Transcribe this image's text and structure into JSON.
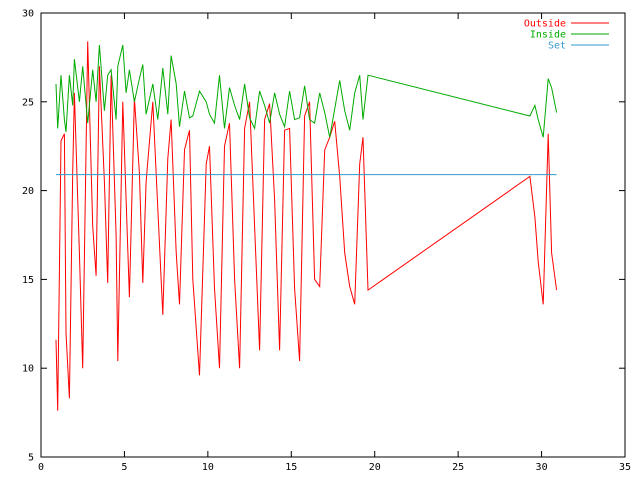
{
  "chart_data": {
    "type": "line",
    "title": "",
    "xlabel": "",
    "ylabel": "",
    "xlim": [
      0,
      35
    ],
    "ylim": [
      5,
      30
    ],
    "xticks": [
      0,
      5,
      10,
      15,
      20,
      25,
      30,
      35
    ],
    "yticks": [
      5,
      10,
      15,
      20,
      25,
      30
    ],
    "grid": false,
    "legend_position": "top-right",
    "series": [
      {
        "name": "Outside",
        "color": "#ff0000",
        "x": [
          0.9,
          1.0,
          1.2,
          1.4,
          1.5,
          1.7,
          1.9,
          2.0,
          2.3,
          2.5,
          2.8,
          3.1,
          3.3,
          3.5,
          3.8,
          4.0,
          4.2,
          4.5,
          4.6,
          4.9,
          5.1,
          5.3,
          5.6,
          5.9,
          6.1,
          6.3,
          6.7,
          7.0,
          7.3,
          7.6,
          7.8,
          8.1,
          8.3,
          8.6,
          8.9,
          9.1,
          9.5,
          9.9,
          10.1,
          10.4,
          10.7,
          11.0,
          11.3,
          11.6,
          11.9,
          12.2,
          12.5,
          12.8,
          13.1,
          13.4,
          13.7,
          14.0,
          14.3,
          14.6,
          14.9,
          15.2,
          15.5,
          15.8,
          16.1,
          16.4,
          16.7,
          17.0,
          17.3,
          17.6,
          17.9,
          18.2,
          18.5,
          18.8,
          19.1,
          19.3,
          19.6,
          29.3,
          29.6,
          29.8,
          30.1,
          30.4,
          30.6,
          30.9
        ],
        "values": [
          11.6,
          7.6,
          22.8,
          23.2,
          12.0,
          8.3,
          21.0,
          25.5,
          16.5,
          10.0,
          28.4,
          18.0,
          15.2,
          27.0,
          20.5,
          14.8,
          26.5,
          17.5,
          10.4,
          25.0,
          19.5,
          14.0,
          25.2,
          21.0,
          14.8,
          20.5,
          25.0,
          19.0,
          13.0,
          21.8,
          24.0,
          16.5,
          13.6,
          22.3,
          23.4,
          15.0,
          9.6,
          21.5,
          22.5,
          14.5,
          10.0,
          22.5,
          23.8,
          15.0,
          10.0,
          23.5,
          25.0,
          18.0,
          11.0,
          24.0,
          24.9,
          19.5,
          11.0,
          23.4,
          23.5,
          14.5,
          10.4,
          24.2,
          25.0,
          15.0,
          14.6,
          22.3,
          23.0,
          23.9,
          20.8,
          16.5,
          14.6,
          13.6,
          21.5,
          23.0,
          14.4,
          20.8,
          18.5,
          16.0,
          13.6,
          23.2,
          16.5,
          14.4
        ]
      },
      {
        "name": "Inside",
        "color": "#00aa00",
        "x": [
          0.9,
          1.0,
          1.2,
          1.4,
          1.5,
          1.7,
          1.9,
          2.0,
          2.3,
          2.5,
          2.8,
          3.1,
          3.3,
          3.5,
          3.8,
          4.0,
          4.2,
          4.5,
          4.6,
          4.9,
          5.1,
          5.3,
          5.6,
          5.9,
          6.1,
          6.3,
          6.7,
          7.0,
          7.3,
          7.6,
          7.8,
          8.1,
          8.3,
          8.6,
          8.9,
          9.1,
          9.5,
          9.9,
          10.1,
          10.4,
          10.7,
          11.0,
          11.3,
          11.6,
          11.9,
          12.2,
          12.5,
          12.8,
          13.1,
          13.4,
          13.7,
          14.0,
          14.3,
          14.6,
          14.9,
          15.2,
          15.5,
          15.8,
          16.1,
          16.4,
          16.7,
          17.0,
          17.3,
          17.6,
          17.9,
          18.2,
          18.5,
          18.8,
          19.1,
          19.3,
          19.6,
          29.3,
          29.6,
          29.8,
          30.1,
          30.4,
          30.6,
          30.9
        ],
        "values": [
          26.0,
          23.5,
          26.5,
          24.0,
          23.3,
          26.5,
          24.8,
          27.4,
          25.0,
          27.0,
          23.8,
          26.8,
          25.0,
          28.2,
          24.5,
          26.5,
          26.8,
          24.0,
          27.0,
          28.2,
          25.5,
          26.8,
          25.0,
          26.3,
          27.1,
          24.3,
          26.0,
          24.0,
          26.9,
          24.3,
          27.6,
          26.0,
          23.6,
          25.6,
          24.1,
          24.2,
          25.6,
          25.0,
          24.3,
          23.8,
          26.5,
          23.5,
          25.8,
          24.8,
          24.0,
          26.0,
          24.1,
          23.5,
          25.6,
          24.8,
          23.8,
          25.5,
          24.3,
          23.6,
          25.6,
          24.0,
          24.1,
          25.9,
          24.0,
          23.8,
          25.5,
          24.4,
          23.0,
          24.6,
          26.2,
          24.5,
          23.4,
          25.5,
          26.5,
          24.0,
          26.5,
          24.2,
          24.8,
          24.0,
          23.0,
          26.3,
          25.8,
          24.4
        ]
      },
      {
        "name": "Set",
        "color": "#3399cc",
        "x": [
          0.9,
          30.9
        ],
        "values": [
          20.9,
          20.9
        ]
      }
    ]
  }
}
